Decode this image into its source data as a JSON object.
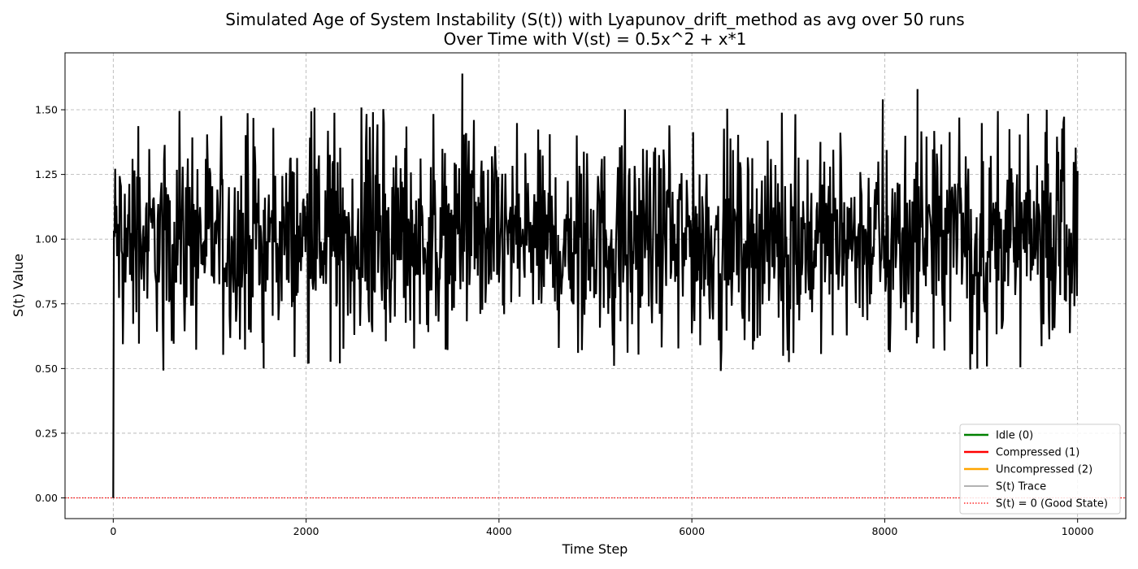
{
  "chart_data": {
    "type": "line",
    "title_line1": "Simulated Age of System Instability (S(t)) with Lyapunov_drift_method as avg over 50 runs",
    "title_line2": "Over Time with V(st) = 0.5x^2 + x*1",
    "xlabel": "Time Step",
    "ylabel": "S(t) Value",
    "xlim": [
      -500,
      10500
    ],
    "ylim": [
      -0.08,
      1.72
    ],
    "x_ticks": [
      0,
      2000,
      4000,
      6000,
      8000,
      10000
    ],
    "x_tick_labels": [
      "0",
      "2000",
      "4000",
      "6000",
      "8000",
      "10000"
    ],
    "y_ticks": [
      0.0,
      0.25,
      0.5,
      0.75,
      1.0,
      1.25,
      1.5
    ],
    "y_tick_labels": [
      "0.00",
      "0.25",
      "0.50",
      "0.75",
      "1.00",
      "1.25",
      "1.50"
    ],
    "grid": true,
    "legend_position": "lower-right",
    "legend": [
      {
        "label": "Idle (0)",
        "color": "#008000",
        "style": "solid-thick"
      },
      {
        "label": "Compressed (1)",
        "color": "#ff0000",
        "style": "solid-thick"
      },
      {
        "label": "Uncompressed (2)",
        "color": "#ffa500",
        "style": "solid-thick"
      },
      {
        "label": "S(t) Trace",
        "color": "#333333",
        "style": "solid-thin"
      },
      {
        "label": "S(t) = 0 (Good State)",
        "color": "#ff0000",
        "style": "dotted"
      }
    ],
    "reference_line": {
      "y": 0,
      "color": "#ff0000",
      "style": "dotted"
    },
    "series": [
      {
        "name": "S(t) Trace",
        "color": "#000000",
        "x_start": 0,
        "x_end": 10000,
        "initial_value": 0.0,
        "mean": 1.0,
        "typical_range": [
          0.62,
          1.4
        ],
        "notable_points": [
          {
            "x": 1560,
            "y": 0.5
          },
          {
            "x": 2350,
            "y": 0.52
          },
          {
            "x": 3620,
            "y": 1.64
          },
          {
            "x": 8340,
            "y": 1.58
          },
          {
            "x": 7980,
            "y": 1.54
          },
          {
            "x": 8960,
            "y": 0.5
          }
        ]
      }
    ]
  }
}
